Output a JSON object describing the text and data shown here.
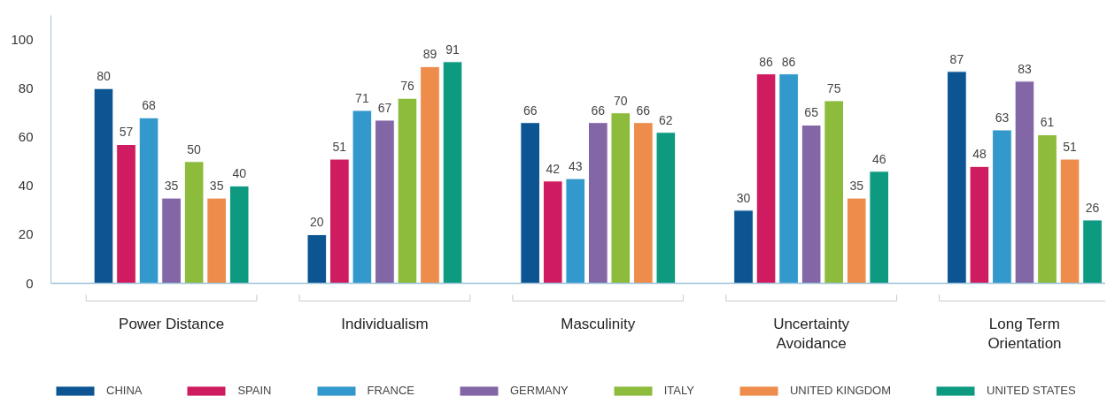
{
  "chart_data": {
    "type": "bar",
    "categories": [
      "Power Distance",
      "Individualism",
      "Masculinity",
      "Uncertainty Avoidance",
      "Long Term Orientation"
    ],
    "series": [
      {
        "name": "CHINA",
        "color": "#0d5592",
        "values": [
          80,
          20,
          66,
          30,
          87
        ]
      },
      {
        "name": "SPAIN",
        "color": "#cf1b5f",
        "values": [
          57,
          51,
          42,
          86,
          48
        ]
      },
      {
        "name": "FRANCE",
        "color": "#3399cc",
        "values": [
          68,
          71,
          43,
          86,
          63
        ]
      },
      {
        "name": "GERMANY",
        "color": "#8266a6",
        "values": [
          35,
          67,
          66,
          65,
          83
        ]
      },
      {
        "name": "ITALY",
        "color": "#8dbb3c",
        "values": [
          50,
          76,
          70,
          75,
          61
        ]
      },
      {
        "name": "UNITED KINGDOM",
        "color": "#ee8c4b",
        "values": [
          35,
          89,
          66,
          35,
          51
        ]
      },
      {
        "name": "UNITED STATES",
        "color": "#0e9a80",
        "values": [
          40,
          91,
          62,
          46,
          26
        ]
      }
    ],
    "ylim": [
      0,
      110
    ],
    "yticks": [
      0,
      20,
      40,
      60,
      80,
      100
    ],
    "data_labels": true,
    "legend": "bottom",
    "grid": false
  }
}
